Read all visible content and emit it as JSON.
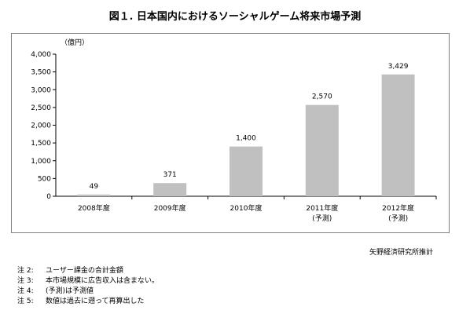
{
  "title": "図１. 日本国内におけるソーシャルゲーム将来市場予測",
  "chart_data": {
    "type": "bar",
    "unit_label": "（億円）",
    "categories": [
      [
        "2008年度"
      ],
      [
        "2009年度"
      ],
      [
        "2010年度"
      ],
      [
        "2011年度",
        "(予測)"
      ],
      [
        "2012年度",
        "(予測)"
      ]
    ],
    "values": [
      49,
      371,
      1400,
      2570,
      3429
    ],
    "data_labels": [
      "49",
      "371",
      "1,400",
      "2,570",
      "3,429"
    ],
    "ylim": [
      0,
      4000
    ],
    "yticks": [
      0,
      500,
      1000,
      1500,
      2000,
      2500,
      3000,
      3500,
      4000
    ],
    "ytick_labels": [
      "0",
      "500",
      "1,000",
      "1,500",
      "2,000",
      "2,500",
      "3,000",
      "3,500",
      "4,000"
    ],
    "bar_color": "#c0c0c0",
    "grid": false
  },
  "source_note": "矢野経済研究所推計",
  "notes": [
    {
      "label": "注 2:",
      "text": "ユーザー課金の合計金額"
    },
    {
      "label": "注 3:",
      "text": "本市場規模に広告収入は含まない。"
    },
    {
      "label": "注 4:",
      "text": "(予測)は予測値"
    },
    {
      "label": "注 5:",
      "text": "数値は過去に遡って再算出した"
    }
  ]
}
